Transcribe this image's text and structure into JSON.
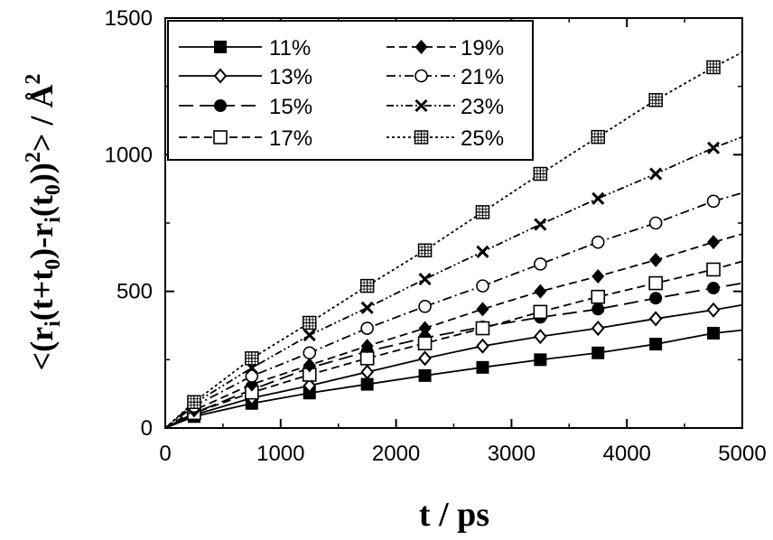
{
  "chart_data": {
    "type": "line",
    "xlabel": "t / ps",
    "ylabel_parts": {
      "open": "<(r",
      "sub_i1": "i",
      "mid1": "(t+t",
      "sub_01": "0",
      "mid2": ")-r",
      "sub_i2": "i",
      "mid3": "(t",
      "sub_02": "0",
      "mid4": "))",
      "sup2": "2",
      "close": "> / Å",
      "sup2b": "2"
    },
    "xlim": [
      0,
      5000
    ],
    "ylim": [
      0,
      1500
    ],
    "x_ticks": [
      0,
      1000,
      2000,
      3000,
      4000,
      5000
    ],
    "y_ticks": [
      0,
      500,
      1000,
      1500
    ],
    "grid": false,
    "legend_position": "top-left",
    "series": [
      {
        "name": "11%",
        "marker": "filled-square",
        "dash": "solid",
        "x": [
          0,
          250,
          750,
          1250,
          1750,
          2250,
          2750,
          3250,
          3750,
          4250,
          4750,
          5000
        ],
        "y": [
          0,
          42,
          90,
          128,
          160,
          192,
          222,
          250,
          275,
          307,
          347,
          358
        ]
      },
      {
        "name": "13%",
        "marker": "open-diamond",
        "dash": "solid",
        "x": [
          0,
          250,
          750,
          1250,
          1750,
          2250,
          2750,
          3250,
          3750,
          4250,
          4750,
          5000
        ],
        "y": [
          0,
          48,
          110,
          155,
          205,
          255,
          300,
          335,
          365,
          400,
          432,
          450
        ]
      },
      {
        "name": "15%",
        "marker": "filled-circle",
        "dash": "longdash",
        "x": [
          0,
          250,
          750,
          1250,
          1750,
          2250,
          2750,
          3250,
          3750,
          4250,
          4750,
          5000
        ],
        "y": [
          0,
          55,
          140,
          220,
          280,
          330,
          370,
          405,
          435,
          475,
          512,
          530
        ]
      },
      {
        "name": "17%",
        "marker": "open-square",
        "dash": "dash",
        "x": [
          0,
          250,
          750,
          1250,
          1750,
          2250,
          2750,
          3250,
          3750,
          4250,
          4750,
          5000
        ],
        "y": [
          0,
          55,
          130,
          195,
          255,
          310,
          365,
          425,
          480,
          530,
          580,
          610
        ]
      },
      {
        "name": "19%",
        "marker": "filled-diamond",
        "dash": "dash",
        "x": [
          0,
          250,
          750,
          1250,
          1750,
          2250,
          2750,
          3250,
          3750,
          4250,
          4750,
          5000
        ],
        "y": [
          0,
          65,
          160,
          230,
          300,
          365,
          435,
          500,
          555,
          615,
          680,
          710
        ]
      },
      {
        "name": "21%",
        "marker": "open-circle",
        "dash": "dashdot",
        "x": [
          0,
          250,
          750,
          1250,
          1750,
          2250,
          2750,
          3250,
          3750,
          4250,
          4750,
          5000
        ],
        "y": [
          0,
          80,
          190,
          275,
          365,
          445,
          520,
          600,
          680,
          750,
          830,
          860
        ]
      },
      {
        "name": "23%",
        "marker": "cross",
        "dash": "dashdotdot",
        "x": [
          0,
          250,
          750,
          1250,
          1750,
          2250,
          2750,
          3250,
          3750,
          4250,
          4750,
          5000
        ],
        "y": [
          0,
          90,
          220,
          340,
          440,
          545,
          645,
          745,
          840,
          930,
          1025,
          1065
        ]
      },
      {
        "name": "25%",
        "marker": "boxed-plus",
        "dash": "dot",
        "x": [
          0,
          250,
          750,
          1250,
          1750,
          2250,
          2750,
          3250,
          3750,
          4250,
          4750,
          5000
        ],
        "y": [
          0,
          95,
          255,
          385,
          520,
          650,
          790,
          930,
          1065,
          1200,
          1320,
          1375
        ]
      }
    ]
  }
}
